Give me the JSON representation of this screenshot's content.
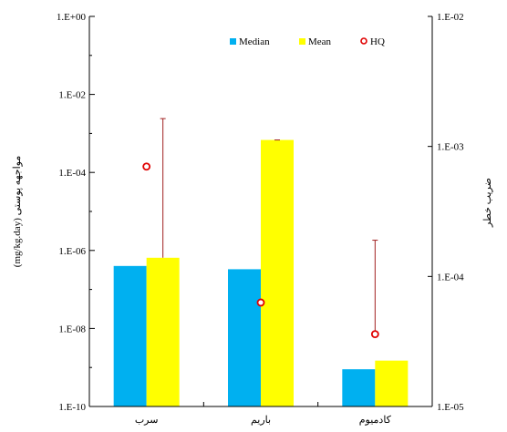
{
  "chart_data": {
    "type": "bar",
    "categories": [
      "سرب",
      "باريم",
      "كادميوم"
    ],
    "series": [
      {
        "name": "Median",
        "color": "#00b0f0",
        "values": [
          4e-07,
          3.3e-07,
          9e-10
        ]
      },
      {
        "name": "Mean",
        "color": "#ffff00",
        "values": [
          6.5e-07,
          0.00068,
          1.5e-09
        ],
        "error_upper": [
          0.0024,
          0.00068,
          null
        ]
      },
      {
        "name": "HQ",
        "color": "#e00000",
        "marker": "circle",
        "axis": "right",
        "values": [
          0.0007,
          6.3e-05,
          3.6e-05
        ],
        "error_upper": [
          null,
          null,
          0.00019
        ]
      }
    ],
    "y_left": {
      "label": "(mg/kg.day) مواجهه پوستی",
      "scale": "log",
      "ylim": [
        1e-10,
        1
      ],
      "ticks": [
        "1.E-10",
        "1.E-08",
        "1.E-06",
        "1.E-04",
        "1.E-02",
        "1.E+00"
      ]
    },
    "y_right": {
      "label": "ضريب خطر",
      "scale": "log",
      "ylim": [
        1e-05,
        0.01
      ],
      "ticks": [
        "1.E-05",
        "1.E-04",
        "1.E-03",
        "1.E-02"
      ]
    },
    "legend_position": "top-right",
    "grid": false
  }
}
